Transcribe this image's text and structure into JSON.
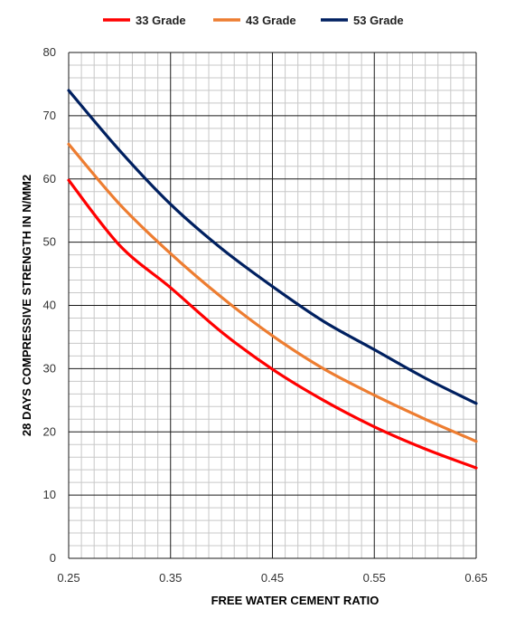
{
  "chart_data": {
    "type": "line",
    "title": "",
    "xlabel": "FREE WATER CEMENT RATIO",
    "ylabel": "28 DAYS COMPRESSIVE STRENGTH IN N/MM2",
    "xlim": [
      0.25,
      0.65
    ],
    "ylim": [
      0,
      80
    ],
    "x_ticks": [
      "0.25",
      "0.35",
      "0.45",
      "0.55",
      "0.65"
    ],
    "y_ticks": [
      "0",
      "10",
      "20",
      "30",
      "40",
      "50",
      "60",
      "70",
      "80"
    ],
    "grid": "major and minor",
    "legend_position": "top",
    "x": [
      0.25,
      0.3,
      0.35,
      0.4,
      0.45,
      0.5,
      0.55,
      0.6,
      0.65
    ],
    "series": [
      {
        "name": "33 Grade",
        "color": "#ff0000",
        "values": [
          59.8,
          49.5,
          42.8,
          35.8,
          29.9,
          25.0,
          20.8,
          17.3,
          14.3
        ]
      },
      {
        "name": "43 Grade",
        "color": "#ed7d31",
        "values": [
          65.5,
          56.0,
          48.2,
          41.3,
          35.2,
          30.0,
          25.8,
          22.0,
          18.5
        ]
      },
      {
        "name": "53 Grade",
        "color": "#002060",
        "values": [
          74.0,
          64.5,
          56.0,
          49.0,
          43.0,
          37.5,
          33.0,
          28.5,
          24.5
        ]
      }
    ]
  }
}
